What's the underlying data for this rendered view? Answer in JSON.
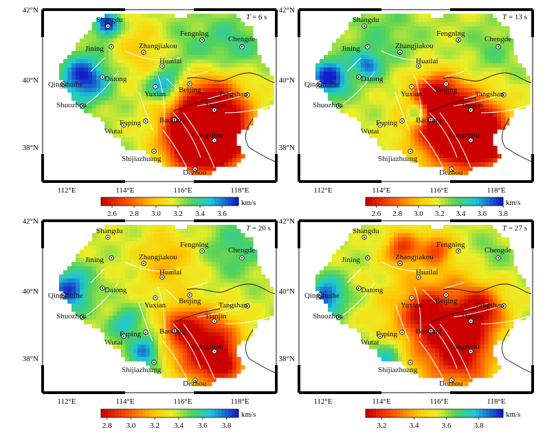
{
  "figure": {
    "panels": [
      {
        "period_prefix": "T",
        "period_text": " = 6 s",
        "colorbar": {
          "ticks": [
            "2.6",
            "2.8",
            "3.0",
            "3.2",
            "3.4",
            "3.6"
          ],
          "unit": "km/s",
          "min": 2.5,
          "max": 3.75
        }
      },
      {
        "period_prefix": "T",
        "period_text": " = 13 s",
        "colorbar": {
          "ticks": [
            "2.6",
            "2.8",
            "3.0",
            "3.2",
            "3.4",
            "3.6",
            "3.8"
          ],
          "unit": "km/s",
          "min": 2.5,
          "max": 3.8
        }
      },
      {
        "period_prefix": "T",
        "period_text": " = 20 s",
        "colorbar": {
          "ticks": [
            "2.8",
            "3.0",
            "3.2",
            "3.4",
            "3.6",
            "3.8"
          ],
          "unit": "km/s",
          "min": 2.75,
          "max": 3.9
        }
      },
      {
        "period_prefix": "T",
        "period_text": " = 27 s",
        "colorbar": {
          "ticks": [
            "3.2",
            "3.4",
            "3.6",
            "3.8"
          ],
          "unit": "km/s",
          "min": 3.1,
          "max": 3.95
        }
      }
    ],
    "lat_labels": [
      "42°N",
      "40°N",
      "38°N"
    ],
    "lon_labels": [
      "112°E",
      "114°E",
      "116°E",
      "118°E"
    ],
    "cities": [
      "Shangdu",
      "Fengning",
      "Chengde",
      "Jining",
      "Zhangjiakou",
      "Huailai",
      "Qingshuihe",
      "Datong",
      "Beijing",
      "Yuxian",
      "Tangshan",
      "Shuozhou",
      "Tianjin",
      "Fuping",
      "Baoding",
      "Wutai",
      "Cangzhou",
      "Shijiazhuang",
      "Dezhou"
    ]
  }
}
